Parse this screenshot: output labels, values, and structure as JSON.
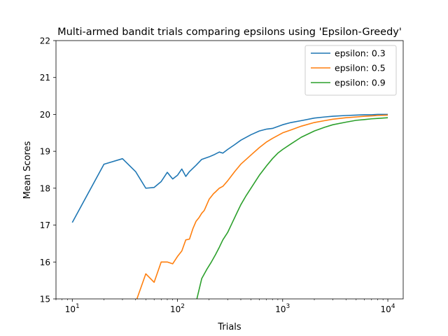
{
  "chart_data": {
    "type": "line",
    "title": "Multi-armed bandit trials comparing epsilons using 'Epsilon-Greedy'",
    "xlabel": "Trials",
    "ylabel": "Mean Scores",
    "xscale": "log",
    "xlim": [
      7,
      14000
    ],
    "ylim": [
      15,
      22
    ],
    "x_ticks": [
      10,
      100,
      1000,
      10000
    ],
    "x_tick_labels": [
      {
        "base": "10",
        "exp": "1"
      },
      {
        "base": "10",
        "exp": "2"
      },
      {
        "base": "10",
        "exp": "3"
      },
      {
        "base": "10",
        "exp": "4"
      }
    ],
    "y_ticks": [
      15,
      16,
      17,
      18,
      19,
      20,
      21,
      22
    ],
    "legend_position": "top-right",
    "label_colors": {
      "xlabel": "#800080",
      "ylabel": "#008000"
    },
    "series": [
      {
        "name": "epsilon: 0.3",
        "color": "#1f77b4",
        "x": [
          10,
          20,
          30,
          40,
          50,
          60,
          70,
          80,
          90,
          100,
          110,
          120,
          130,
          150,
          170,
          200,
          220,
          250,
          270,
          300,
          350,
          400,
          500,
          600,
          700,
          800,
          1000,
          1200,
          1500,
          2000,
          2500,
          3000,
          4000,
          5000,
          6000,
          7000,
          8000,
          10000
        ],
        "values": [
          17.07,
          18.65,
          18.8,
          18.45,
          18.0,
          18.02,
          18.18,
          18.43,
          18.25,
          18.35,
          18.52,
          18.32,
          18.45,
          18.62,
          18.78,
          18.85,
          18.9,
          18.98,
          18.95,
          19.05,
          19.18,
          19.3,
          19.45,
          19.55,
          19.6,
          19.62,
          19.72,
          19.78,
          19.83,
          19.9,
          19.93,
          19.95,
          19.97,
          19.98,
          19.99,
          19.99,
          20.0,
          20.0
        ]
      },
      {
        "name": "epsilon: 0.5",
        "color": "#ff7f0e",
        "x": [
          40,
          50,
          60,
          70,
          80,
          90,
          100,
          110,
          120,
          130,
          140,
          150,
          160,
          170,
          180,
          200,
          220,
          230,
          250,
          270,
          300,
          350,
          400,
          500,
          600,
          700,
          800,
          1000,
          1200,
          1500,
          2000,
          2500,
          3000,
          4000,
          5000,
          6000,
          7000,
          8000,
          10000
        ],
        "values": [
          14.9,
          15.68,
          15.45,
          16.0,
          16.0,
          15.95,
          16.15,
          16.3,
          16.6,
          16.62,
          16.9,
          17.1,
          17.2,
          17.32,
          17.4,
          17.7,
          17.85,
          17.9,
          18.0,
          18.05,
          18.2,
          18.45,
          18.65,
          18.9,
          19.1,
          19.25,
          19.35,
          19.5,
          19.58,
          19.68,
          19.78,
          19.83,
          19.87,
          19.91,
          19.93,
          19.95,
          19.96,
          19.97,
          19.98
        ]
      },
      {
        "name": "epsilon: 0.9",
        "color": "#2ca02c",
        "x": [
          150,
          170,
          190,
          210,
          230,
          250,
          270,
          300,
          330,
          370,
          400,
          450,
          500,
          600,
          700,
          800,
          900,
          1000,
          1200,
          1500,
          2000,
          2500,
          3000,
          4000,
          5000,
          6000,
          7000,
          8000,
          10000
        ],
        "values": [
          14.9,
          15.55,
          15.8,
          16.0,
          16.2,
          16.4,
          16.6,
          16.8,
          17.05,
          17.35,
          17.55,
          17.8,
          18.0,
          18.35,
          18.6,
          18.8,
          18.95,
          19.05,
          19.2,
          19.38,
          19.55,
          19.65,
          19.72,
          19.79,
          19.84,
          19.86,
          19.88,
          19.89,
          19.91
        ]
      }
    ]
  }
}
